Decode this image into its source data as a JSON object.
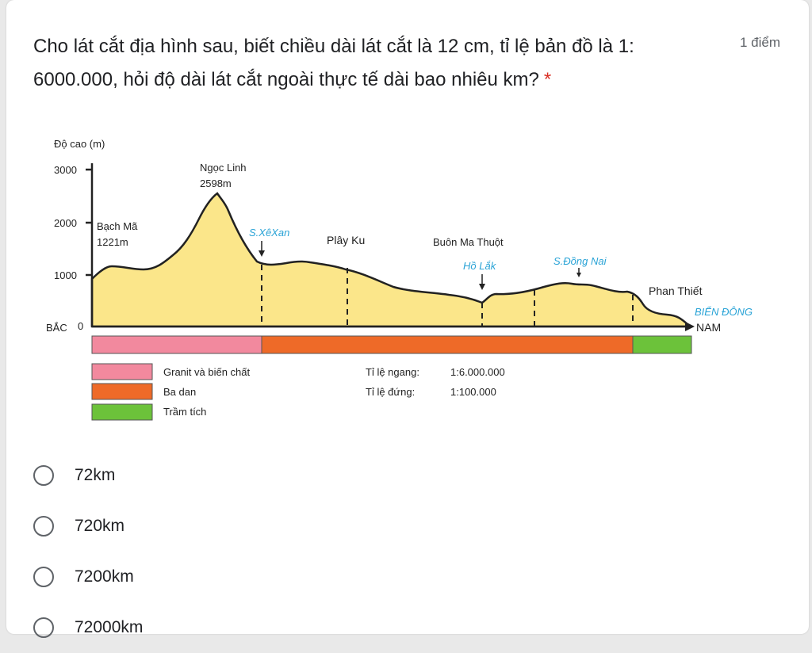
{
  "question": {
    "text": "Cho lát cắt địa hình sau, biết chiều dài lát cắt là 12 cm, tỉ lệ bản đồ là 1: 6000.000, hỏi độ dài lát cắt ngoài thực tế dài bao nhiêu km?",
    "required_mark": "*",
    "points": "1 điểm"
  },
  "figure": {
    "y_axis_label": "Độ cao (m)",
    "y_ticks": [
      "3000",
      "2000",
      "1000",
      "0"
    ],
    "left_end": "BẮC",
    "right_end": "NAM",
    "places": {
      "ngoc_linh_name": "Ngọc Linh",
      "ngoc_linh_height": "2598m",
      "bach_ma_name": "Bạch Mã",
      "bach_ma_height": "1221m",
      "se_xan": "S.XêXan",
      "play_ku": "Plây Ku",
      "buon_ma_thuot": "Buôn Ma Thuột",
      "ho_lak": "Hồ Lắk",
      "dong_nai": "S.Đồng Nai",
      "phan_thiet": "Phan Thiết",
      "bien_dong": "BIỂN ĐÔNG"
    },
    "legend": [
      {
        "label": "Granit và biến chất",
        "color": "#f2899e"
      },
      {
        "label": "Ba dan",
        "color": "#ee6a28"
      },
      {
        "label": "Trầm tích",
        "color": "#6cc23a"
      }
    ],
    "scale": {
      "horizontal_label": "Tỉ lệ ngang:",
      "horizontal_value": "1:6.000.000",
      "vertical_label": "Tỉ lệ đứng:",
      "vertical_value": "1:100.000"
    },
    "colors": {
      "terrain": "#fbe68a",
      "water_label": "#29a3d6"
    }
  },
  "options": [
    {
      "label": "72km"
    },
    {
      "label": "720km"
    },
    {
      "label": "7200km"
    },
    {
      "label": "72000km"
    }
  ]
}
